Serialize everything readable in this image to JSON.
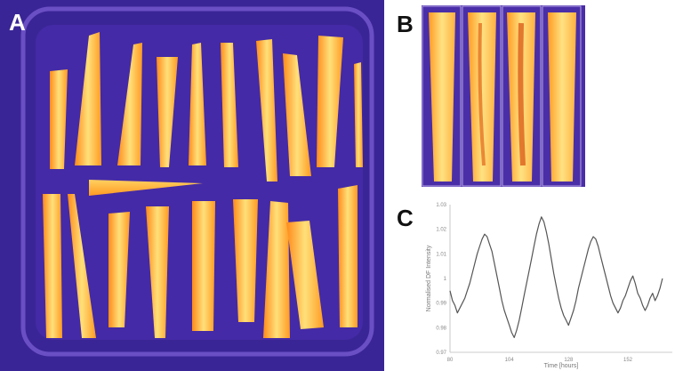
{
  "figure": {
    "panels": [
      {
        "letter": "A"
      },
      {
        "letter": "B"
      },
      {
        "letter": "C"
      }
    ],
    "colors": {
      "background_false_color": "#3a2596",
      "leaf_hot": "#ffe07a",
      "leaf_warm": "#ff9a1e",
      "line": "#555555"
    }
  },
  "chart_data": {
    "type": "line",
    "title": "",
    "xlabel": "Time [hours]",
    "ylabel": "Normalised DF Intensity",
    "xlim": [
      80,
      170
    ],
    "ylim": [
      0.97,
      1.03
    ],
    "x_ticks": [
      80,
      104,
      128,
      152
    ],
    "y_ticks": [
      0.97,
      0.98,
      0.99,
      1,
      1.01,
      1.02,
      1.03
    ],
    "series": [
      {
        "x": [
          80,
          81,
          82,
          83,
          84,
          85,
          86,
          87,
          88,
          89,
          90,
          91,
          92,
          93,
          94,
          95,
          96,
          97,
          98,
          99,
          100,
          101,
          102,
          103,
          104,
          105,
          106,
          107,
          108,
          109,
          110,
          111,
          112,
          113,
          114,
          115,
          116,
          117,
          118,
          119,
          120,
          121,
          122,
          123,
          124,
          125,
          126,
          127,
          128,
          129,
          130,
          131,
          132,
          133,
          134,
          135,
          136,
          137,
          138,
          139,
          140,
          141,
          142,
          143,
          144,
          145,
          146,
          147,
          148,
          149,
          150,
          151,
          152,
          153,
          154,
          155,
          156,
          157,
          158,
          159,
          160,
          161,
          162,
          163,
          164,
          165,
          166
        ],
        "values": [
          0.995,
          0.991,
          0.989,
          0.986,
          0.988,
          0.99,
          0.992,
          0.995,
          0.998,
          1.002,
          1.006,
          1.01,
          1.013,
          1.016,
          1.018,
          1.017,
          1.014,
          1.011,
          1.006,
          1.001,
          0.996,
          0.991,
          0.987,
          0.984,
          0.981,
          0.978,
          0.976,
          0.979,
          0.983,
          0.988,
          0.993,
          0.998,
          1.003,
          1.008,
          1.013,
          1.018,
          1.022,
          1.025,
          1.023,
          1.019,
          1.014,
          1.008,
          1.002,
          0.997,
          0.992,
          0.988,
          0.985,
          0.983,
          0.981,
          0.984,
          0.987,
          0.991,
          0.996,
          1.0,
          1.004,
          1.008,
          1.012,
          1.015,
          1.017,
          1.016,
          1.013,
          1.009,
          1.005,
          1.001,
          0.997,
          0.993,
          0.99,
          0.988,
          0.986,
          0.988,
          0.991,
          0.993,
          0.996,
          0.999,
          1.001,
          0.998,
          0.994,
          0.992,
          0.989,
          0.987,
          0.989,
          0.992,
          0.994,
          0.991,
          0.993,
          0.996,
          1.0
        ]
      }
    ],
    "grid": false,
    "legend": "none"
  }
}
